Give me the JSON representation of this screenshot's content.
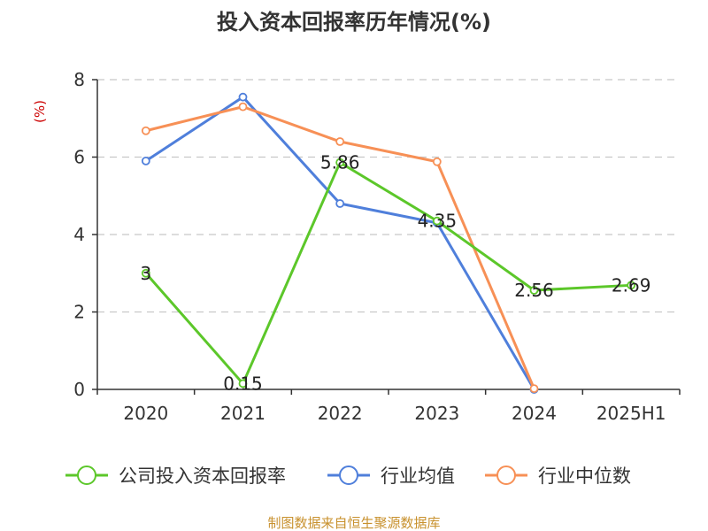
{
  "chart_data": {
    "type": "line",
    "title": "投入资本回报率历年情况(%)",
    "ylabel": "(%)",
    "xlabel": "",
    "categories": [
      "2020",
      "2021",
      "2022",
      "2023",
      "2024",
      "2025H1"
    ],
    "ylim": [
      0,
      8
    ],
    "yticks": [
      0,
      2,
      4,
      6,
      8
    ],
    "grid": "horizontal-dashed",
    "legend_position": "bottom",
    "series": [
      {
        "name": "公司投入资本回报率",
        "color": "#5cc72a",
        "values": [
          3,
          0.15,
          5.86,
          4.35,
          2.56,
          2.69
        ],
        "data_labels": [
          "3",
          "0.15",
          "5.86",
          "4.35",
          "2.56",
          "2.69"
        ]
      },
      {
        "name": "行业均值",
        "color": "#4f7fdb",
        "values": [
          5.9,
          7.55,
          4.8,
          4.3,
          0,
          null
        ]
      },
      {
        "name": "行业中位数",
        "color": "#f79056",
        "values": [
          6.68,
          7.3,
          6.4,
          5.88,
          0.02,
          null
        ]
      }
    ]
  },
  "footer": {
    "source": "制图数据来自恒生聚源数据库"
  }
}
